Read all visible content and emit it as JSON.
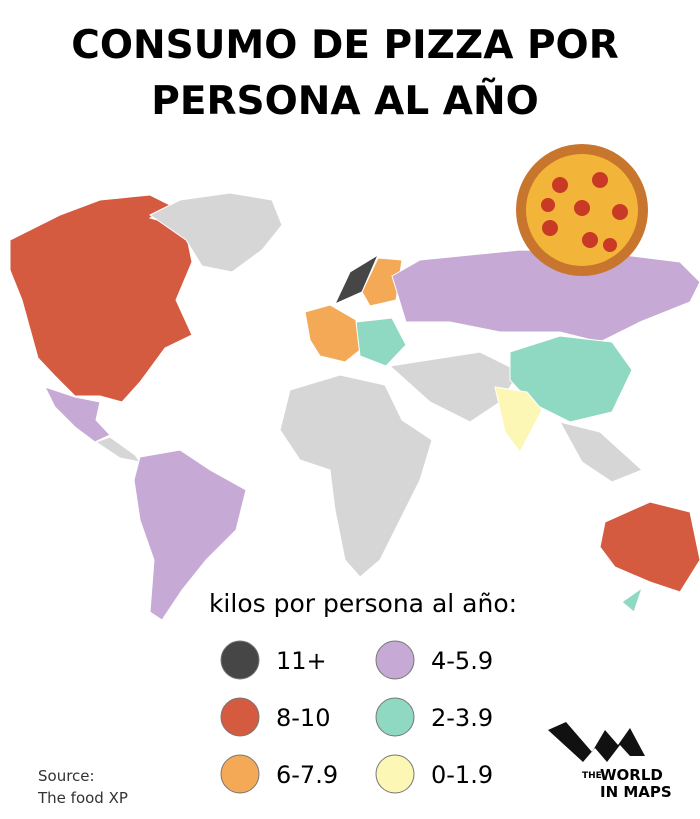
{
  "title": [
    "CONSUMO DE PIZZA POR",
    "PERSONA AL AÑO"
  ],
  "legend": {
    "title": "kilos por persona al año:",
    "items": [
      {
        "label": "11+",
        "color": "#464646"
      },
      {
        "label": "8-10",
        "color": "#d45a40"
      },
      {
        "label": "6-7.9",
        "color": "#f4a957"
      },
      {
        "label": "4-5.9",
        "color": "#c6a9d4"
      },
      {
        "label": "2-3.9",
        "color": "#8fd8c1"
      },
      {
        "label": "0-1.9",
        "color": "#fdf7b5"
      }
    ]
  },
  "source": [
    "Source:",
    "The food XP"
  ],
  "logo": [
    "THE",
    "WORLD",
    "IN MAPS"
  ]
}
